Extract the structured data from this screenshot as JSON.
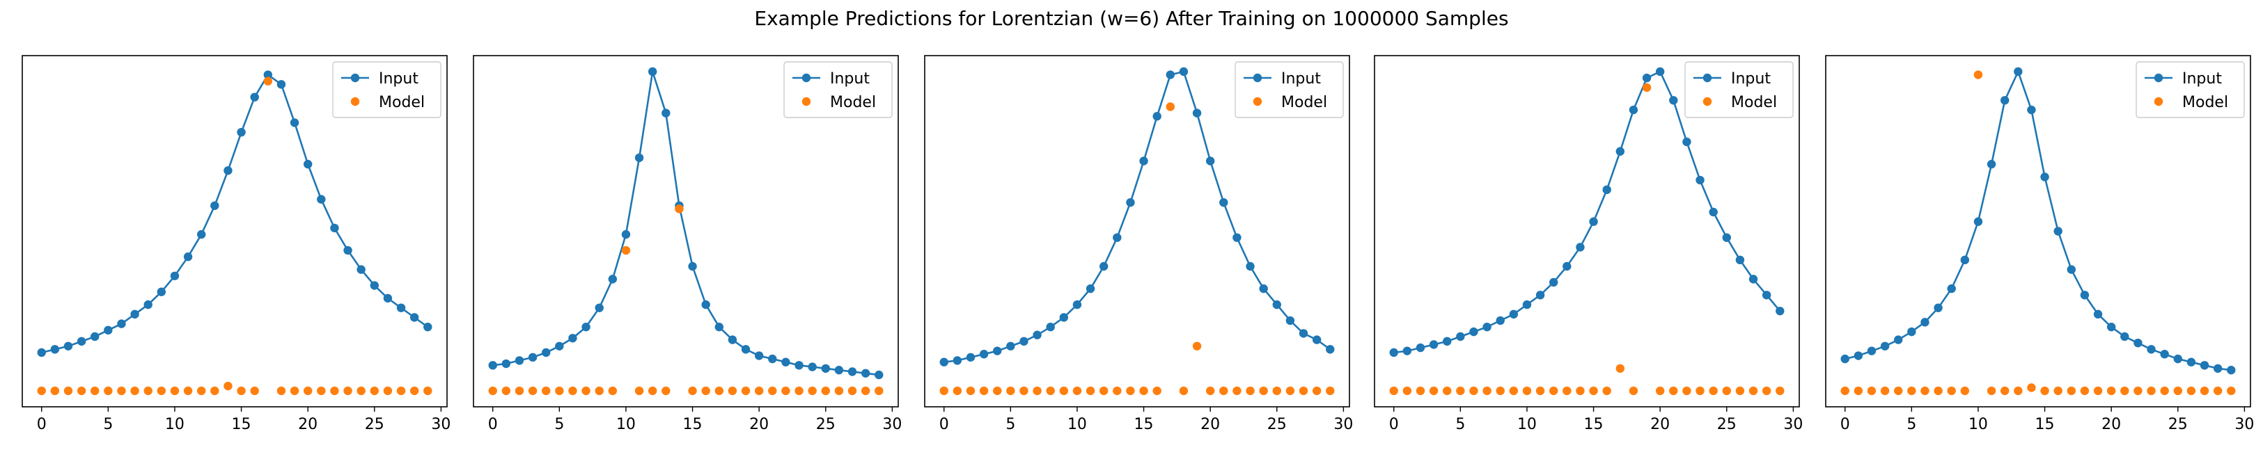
{
  "figure": {
    "title": "Example Predictions for Lorentzian (w=6) After Training on 1000000 Samples"
  },
  "colors": {
    "input": "#1f77b4",
    "model": "#ff7f0e"
  },
  "chart_data": [
    {
      "type": "line",
      "title": "",
      "xlabel": "",
      "ylabel": "",
      "xticks": [
        0,
        5,
        10,
        15,
        20,
        25,
        30
      ],
      "xlim": [
        -1.45,
        30.45
      ],
      "ylim": [
        -0.05,
        1.05
      ],
      "legend": {
        "position": "top-right",
        "entries": [
          "Input",
          "Model"
        ]
      },
      "x": [
        0,
        1,
        2,
        3,
        4,
        5,
        6,
        7,
        8,
        9,
        10,
        11,
        12,
        13,
        14,
        15,
        16,
        17,
        18,
        19,
        20,
        21,
        22,
        23,
        24,
        25,
        26,
        27,
        28,
        29
      ],
      "series": [
        {
          "name": "Input",
          "style": "line-markers",
          "values": [
            0.12,
            0.13,
            0.14,
            0.155,
            0.17,
            0.19,
            0.21,
            0.24,
            0.27,
            0.31,
            0.36,
            0.42,
            0.49,
            0.58,
            0.69,
            0.81,
            0.92,
            0.99,
            0.96,
            0.84,
            0.71,
            0.6,
            0.51,
            0.44,
            0.38,
            0.33,
            0.29,
            0.26,
            0.23,
            0.2
          ]
        },
        {
          "name": "Model",
          "style": "markers",
          "values": [
            0,
            0,
            0,
            0,
            0,
            0,
            0,
            0,
            0,
            0,
            0,
            0,
            0,
            0,
            0.015,
            0,
            0,
            0.97,
            0,
            0,
            0,
            0,
            0,
            0,
            0,
            0,
            0,
            0,
            0,
            0
          ]
        }
      ]
    },
    {
      "type": "line",
      "title": "",
      "xlabel": "",
      "ylabel": "",
      "xticks": [
        0,
        5,
        10,
        15,
        20,
        25,
        30
      ],
      "xlim": [
        -1.45,
        30.45
      ],
      "ylim": [
        -0.05,
        1.05
      ],
      "legend": {
        "position": "top-right",
        "entries": [
          "Input",
          "Model"
        ]
      },
      "x": [
        0,
        1,
        2,
        3,
        4,
        5,
        6,
        7,
        8,
        9,
        10,
        11,
        12,
        13,
        14,
        15,
        16,
        17,
        18,
        19,
        20,
        21,
        22,
        23,
        24,
        25,
        26,
        27,
        28,
        29
      ],
      "series": [
        {
          "name": "Input",
          "style": "line-markers",
          "values": [
            0.08,
            0.085,
            0.095,
            0.105,
            0.12,
            0.14,
            0.165,
            0.2,
            0.26,
            0.35,
            0.49,
            0.73,
            1.0,
            0.87,
            0.58,
            0.39,
            0.27,
            0.2,
            0.16,
            0.13,
            0.11,
            0.1,
            0.09,
            0.08,
            0.075,
            0.07,
            0.065,
            0.06,
            0.055,
            0.05
          ]
        },
        {
          "name": "Model",
          "style": "markers",
          "values": [
            0,
            0,
            0,
            0,
            0,
            0,
            0,
            0,
            0,
            0,
            0.44,
            0,
            0,
            0,
            0.57,
            0,
            0,
            0,
            0,
            0,
            0,
            0,
            0,
            0,
            0,
            0,
            0,
            0,
            0,
            0
          ]
        }
      ]
    },
    {
      "type": "line",
      "title": "",
      "xlabel": "",
      "ylabel": "",
      "xticks": [
        0,
        5,
        10,
        15,
        20,
        25,
        30
      ],
      "xlim": [
        -1.45,
        30.45
      ],
      "ylim": [
        -0.05,
        1.05
      ],
      "legend": {
        "position": "top-right",
        "entries": [
          "Input",
          "Model"
        ]
      },
      "x": [
        0,
        1,
        2,
        3,
        4,
        5,
        6,
        7,
        8,
        9,
        10,
        11,
        12,
        13,
        14,
        15,
        16,
        17,
        18,
        19,
        20,
        21,
        22,
        23,
        24,
        25,
        26,
        27,
        28,
        29
      ],
      "series": [
        {
          "name": "Input",
          "style": "line-markers",
          "values": [
            0.09,
            0.095,
            0.105,
            0.115,
            0.125,
            0.14,
            0.155,
            0.175,
            0.2,
            0.23,
            0.27,
            0.32,
            0.39,
            0.48,
            0.59,
            0.72,
            0.86,
            0.99,
            1.0,
            0.87,
            0.72,
            0.59,
            0.48,
            0.39,
            0.32,
            0.27,
            0.22,
            0.18,
            0.16,
            0.13
          ]
        },
        {
          "name": "Model",
          "style": "markers",
          "values": [
            0,
            0,
            0,
            0,
            0,
            0,
            0,
            0,
            0,
            0,
            0,
            0,
            0,
            0,
            0,
            0,
            0,
            0.89,
            0,
            0.14,
            0,
            0,
            0,
            0,
            0,
            0,
            0,
            0,
            0,
            0
          ]
        }
      ]
    },
    {
      "type": "line",
      "title": "",
      "xlabel": "",
      "ylabel": "",
      "xticks": [
        0,
        5,
        10,
        15,
        20,
        25,
        30
      ],
      "xlim": [
        -1.45,
        30.45
      ],
      "ylim": [
        -0.05,
        1.05
      ],
      "legend": {
        "position": "top-right",
        "entries": [
          "Input",
          "Model"
        ]
      },
      "x": [
        0,
        1,
        2,
        3,
        4,
        5,
        6,
        7,
        8,
        9,
        10,
        11,
        12,
        13,
        14,
        15,
        16,
        17,
        18,
        19,
        20,
        21,
        22,
        23,
        24,
        25,
        26,
        27,
        28,
        29
      ],
      "series": [
        {
          "name": "Input",
          "style": "line-markers",
          "values": [
            0.12,
            0.125,
            0.135,
            0.145,
            0.155,
            0.17,
            0.185,
            0.2,
            0.22,
            0.24,
            0.27,
            0.3,
            0.34,
            0.39,
            0.45,
            0.53,
            0.63,
            0.75,
            0.88,
            0.98,
            1.0,
            0.91,
            0.78,
            0.66,
            0.56,
            0.48,
            0.41,
            0.35,
            0.3,
            0.25
          ]
        },
        {
          "name": "Model",
          "style": "markers",
          "values": [
            0,
            0,
            0,
            0,
            0,
            0,
            0,
            0,
            0,
            0,
            0,
            0,
            0,
            0,
            0,
            0,
            0,
            0.07,
            0,
            0.95,
            0,
            0,
            0,
            0,
            0,
            0,
            0,
            0,
            0,
            0
          ]
        }
      ]
    },
    {
      "type": "line",
      "title": "",
      "xlabel": "",
      "ylabel": "",
      "xticks": [
        0,
        5,
        10,
        15,
        20,
        25,
        30
      ],
      "xlim": [
        -1.45,
        30.45
      ],
      "ylim": [
        -0.05,
        1.05
      ],
      "legend": {
        "position": "top-right",
        "entries": [
          "Input",
          "Model"
        ]
      },
      "x": [
        0,
        1,
        2,
        3,
        4,
        5,
        6,
        7,
        8,
        9,
        10,
        11,
        12,
        13,
        14,
        15,
        16,
        17,
        18,
        19,
        20,
        21,
        22,
        23,
        24,
        25,
        26,
        27,
        28,
        29
      ],
      "series": [
        {
          "name": "Input",
          "style": "line-markers",
          "values": [
            0.1,
            0.11,
            0.125,
            0.14,
            0.16,
            0.185,
            0.215,
            0.26,
            0.32,
            0.41,
            0.53,
            0.71,
            0.91,
            1.0,
            0.88,
            0.67,
            0.5,
            0.38,
            0.3,
            0.24,
            0.2,
            0.17,
            0.15,
            0.13,
            0.115,
            0.1,
            0.09,
            0.08,
            0.07,
            0.065
          ]
        },
        {
          "name": "Model",
          "style": "markers",
          "values": [
            0,
            0,
            0,
            0,
            0,
            0,
            0,
            0,
            0,
            0,
            0.99,
            0,
            0,
            0,
            0.01,
            0,
            0,
            0,
            0,
            0,
            0,
            0,
            0,
            0,
            0,
            0,
            0,
            0,
            0,
            0
          ]
        }
      ]
    }
  ]
}
